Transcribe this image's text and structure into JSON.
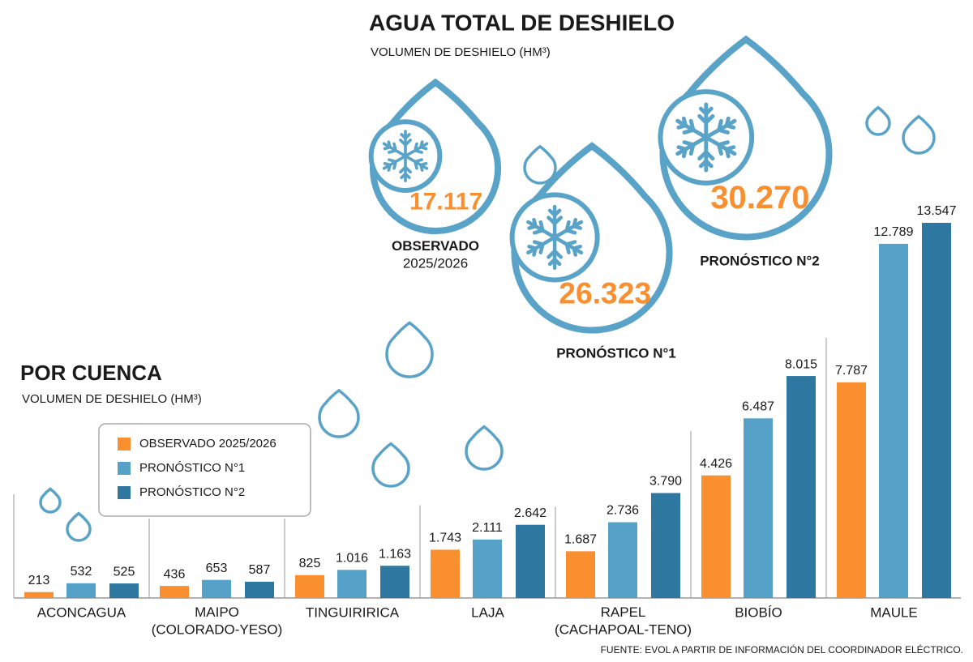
{
  "source": "FUENTE: EVOL A PARTIR DE INFORMACIÓN DEL COORDINADOR ELÉCTRICO.",
  "chart_data": [
    {
      "type": "drops",
      "title": "AGUA TOTAL DE DESHIELO",
      "subtitle": "VOLUMEN DE DESHIELO (HM³)",
      "categories": [
        "OBSERVADO\n2025/2026",
        "PRONÓSTICO N°1",
        "PRONÓSTICO N°2"
      ],
      "values": [
        17117,
        26323,
        30270
      ],
      "value_labels": [
        "17.117",
        "26.323",
        "30.270"
      ],
      "color": "#5aa3c8",
      "label_color": "#f98f2f"
    },
    {
      "type": "bar",
      "title": "POR CUENCA",
      "subtitle": "VOLUMEN DE DESHIELO (HM³)",
      "categories": [
        "ACONCAGUA",
        "MAIPO\n(COLORADO-YESO)",
        "TINGUIRIRICA",
        "LAJA",
        "RAPEL\n(CACHAPOAL-TENO)",
        "BIOBÍO",
        "MAULE"
      ],
      "series": [
        {
          "name": "OBSERVADO 2025/2026",
          "color": "#f98f2f",
          "values": [
            213,
            436,
            825,
            1743,
            1687,
            4426,
            7787
          ],
          "value_labels": [
            "213",
            "436",
            "825",
            "1.743",
            "1.687",
            "4.426",
            "7.787"
          ]
        },
        {
          "name": "PRONÓSTICO N°1",
          "color": "#55a1c8",
          "values": [
            532,
            653,
            1016,
            2111,
            2736,
            6487,
            12789
          ],
          "value_labels": [
            "532",
            "653",
            "1.016",
            "2.111",
            "2.736",
            "6.487",
            "12.789"
          ]
        },
        {
          "name": "PRONÓSTICO N°2",
          "color": "#2e77a0",
          "values": [
            525,
            587,
            1163,
            2642,
            3790,
            8015,
            13547
          ],
          "value_labels": [
            "525",
            "587",
            "1.163",
            "2.642",
            "3.790",
            "8.015",
            "13.547"
          ]
        }
      ]
    }
  ]
}
